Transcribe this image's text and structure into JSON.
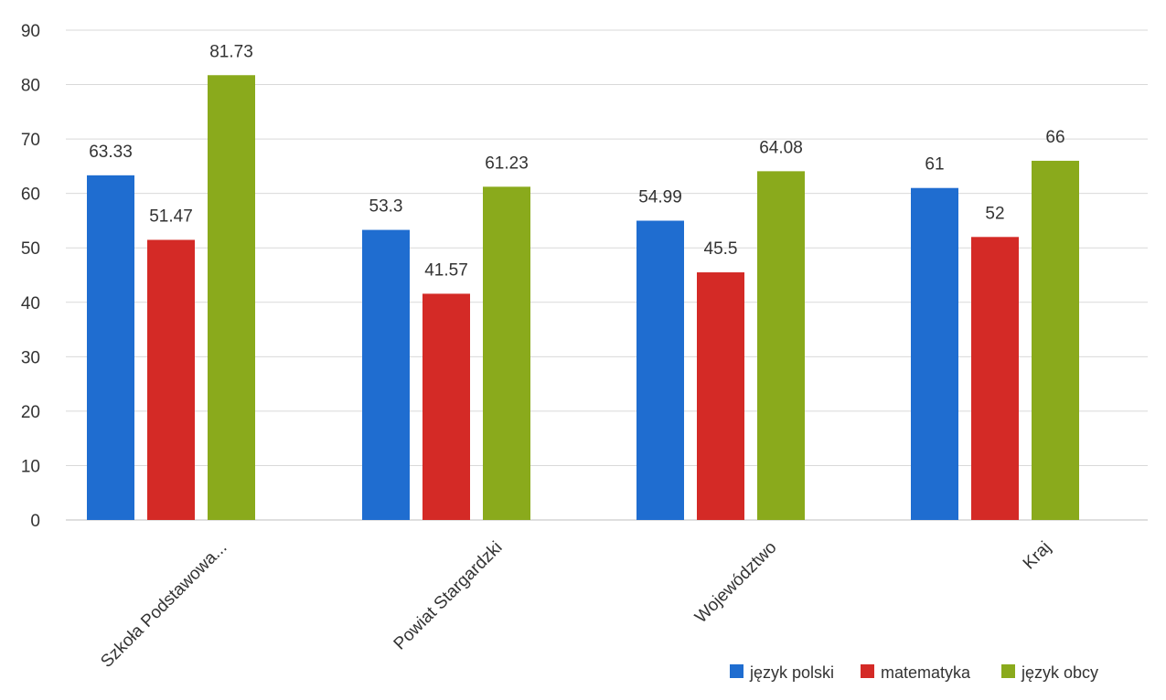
{
  "chart_data": {
    "type": "bar",
    "title": "",
    "xlabel": "",
    "ylabel": "",
    "categories": [
      "Szkoła Podstawowa...",
      "Powiat Stargardzki",
      "Województwo",
      "Kraj"
    ],
    "series": [
      {
        "name": "język polski",
        "color": "#1f6dd0",
        "values": [
          63.33,
          53.3,
          54.99,
          61
        ],
        "labels": [
          "63.33",
          "53.3",
          "54.99",
          "61"
        ]
      },
      {
        "name": "matematyka",
        "color": "#d42a26",
        "values": [
          51.47,
          41.57,
          45.5,
          52
        ],
        "labels": [
          "51.47",
          "41.57",
          "45.5",
          "52"
        ]
      },
      {
        "name": "język obcy",
        "color": "#8aaa1c",
        "values": [
          81.73,
          61.23,
          64.08,
          66
        ],
        "labels": [
          "81.73",
          "61.23",
          "64.08",
          "66"
        ]
      }
    ],
    "ylim": [
      0,
      90
    ],
    "yticks": [
      0,
      10,
      20,
      30,
      40,
      50,
      60,
      70,
      80,
      90
    ],
    "grid": true,
    "legend_position": "bottom-right",
    "x_tick_rotation": "diagonal"
  }
}
